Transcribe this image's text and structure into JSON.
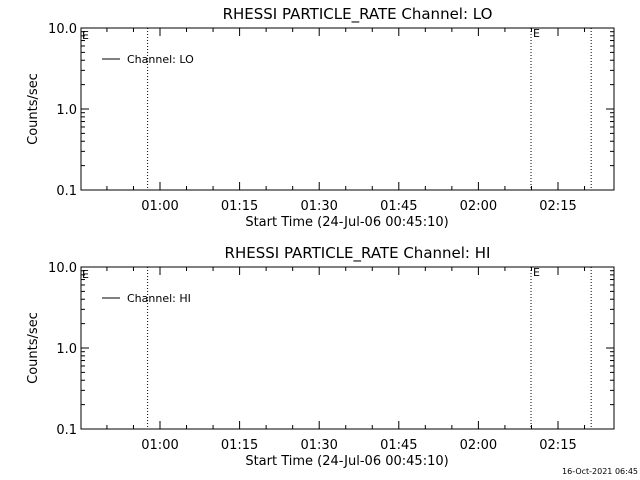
{
  "chart_data": [
    {
      "type": "line",
      "title": "RHESSI PARTICLE_RATE Channel: LO",
      "xlabel": "Start Time (24-Jul-06 00:45:10)",
      "ylabel": "Counts/sec",
      "y_scale": "log",
      "ylim": [
        0.1,
        10.0
      ],
      "y_ticks": [
        "10.0",
        "1.0",
        "0.1"
      ],
      "x_tick_labels": [
        "01:00",
        "01:15",
        "01:30",
        "01:45",
        "02:00",
        "02:15"
      ],
      "event_markers": [
        "00:57:40",
        "02:09:55",
        "02:21:15"
      ],
      "marker_labels": [
        "E",
        "E"
      ],
      "legend": {
        "placement": "top-left",
        "entries": [
          "Channel: LO"
        ]
      },
      "series": [
        {
          "name": "Channel: LO",
          "values": []
        }
      ]
    },
    {
      "type": "line",
      "title": "RHESSI PARTICLE_RATE Channel: HI",
      "xlabel": "Start Time (24-Jul-06 00:45:10)",
      "ylabel": "Counts/sec",
      "y_scale": "log",
      "ylim": [
        0.1,
        10.0
      ],
      "y_ticks": [
        "10.0",
        "1.0",
        "0.1"
      ],
      "x_tick_labels": [
        "01:00",
        "01:15",
        "01:30",
        "01:45",
        "02:00",
        "02:15"
      ],
      "event_markers": [
        "00:57:40",
        "02:09:55",
        "02:21:15"
      ],
      "marker_labels": [
        "E",
        "E"
      ],
      "legend": {
        "placement": "top-left",
        "entries": [
          "Channel: HI"
        ]
      },
      "series": [
        {
          "name": "Channel: HI",
          "values": []
        }
      ]
    }
  ],
  "footer": {
    "timestamp": "16-Oct-2021 06:45"
  }
}
